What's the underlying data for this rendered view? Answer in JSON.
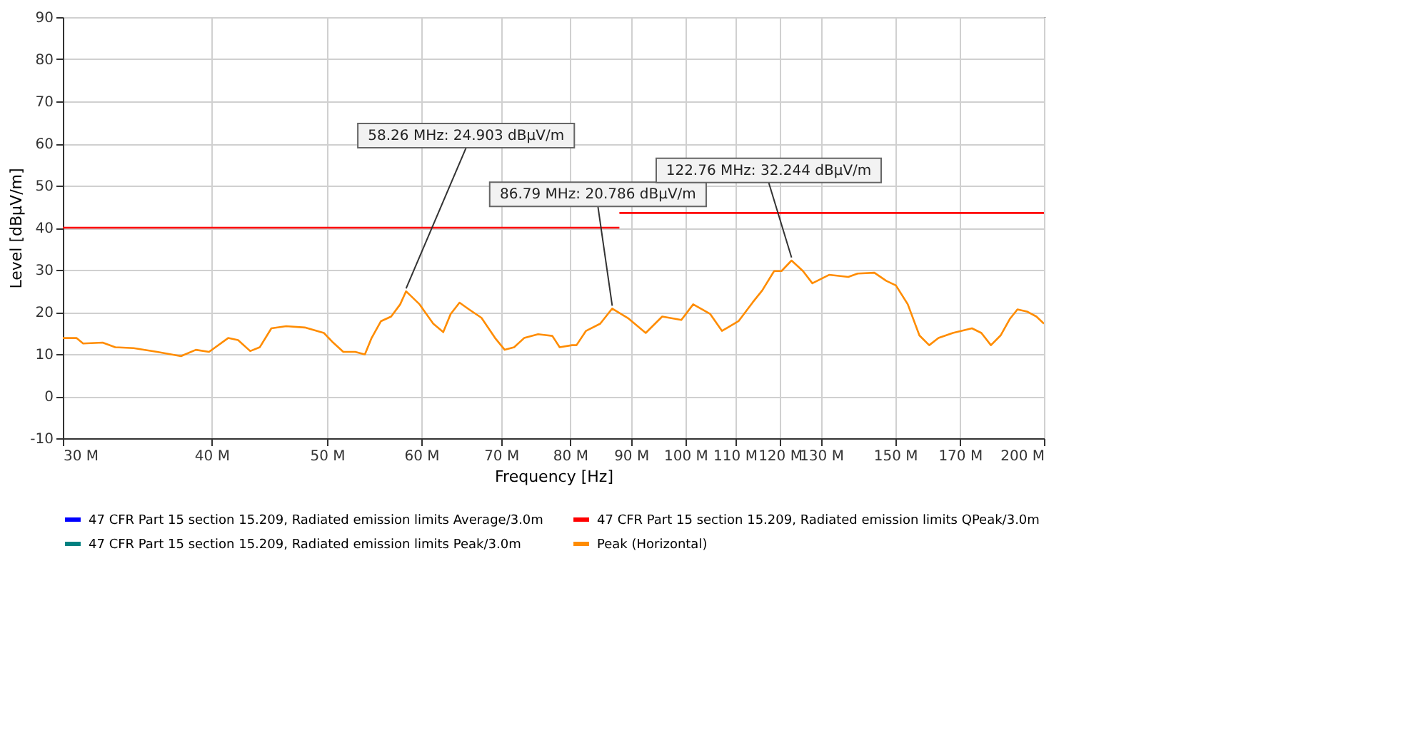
{
  "chart_data": {
    "type": "line",
    "xlabel": "Frequency [Hz]",
    "ylabel": "Level [dBµV/m]",
    "log": "x",
    "grid": true,
    "legend": "bottom",
    "line_style": "solid",
    "marker": "none",
    "xlim": [
      30000000,
      200000000
    ],
    "xticks": [
      {
        "value": 30000000,
        "label": "30 M"
      },
      {
        "value": 40000000,
        "label": "40 M"
      },
      {
        "value": 50000000,
        "label": "50 M"
      },
      {
        "value": 60000000,
        "label": "60 M"
      },
      {
        "value": 70000000,
        "label": "70 M"
      },
      {
        "value": 80000000,
        "label": "80 M"
      },
      {
        "value": 90000000,
        "label": "90 M"
      },
      {
        "value": 100000000,
        "label": "100 M"
      },
      {
        "value": 110000000,
        "label": "110 M"
      },
      {
        "value": 120000000,
        "label": "120 M"
      },
      {
        "value": 130000000,
        "label": "130 M"
      },
      {
        "value": 150000000,
        "label": "150 M"
      },
      {
        "value": 170000000,
        "label": "170 M"
      },
      {
        "value": 200000000,
        "label": "200 M"
      }
    ],
    "ylim": [
      -10,
      90
    ],
    "yticks": [
      -10,
      0,
      10,
      20,
      30,
      40,
      50,
      60,
      70,
      80,
      90
    ],
    "series": [
      {
        "name": "47 CFR Part 15 section 15.209, Radiated emission limits Average/3.0m",
        "color": "#0000ff"
      },
      {
        "name": "47 CFR Part 15 section 15.209, Radiated emission limits QPeak/3.0m",
        "color": "#ff0000",
        "x": [
          30000000,
          88000000,
          null,
          88000000,
          200000000
        ],
        "values": [
          40,
          40,
          null,
          43.5,
          43.5
        ]
      },
      {
        "name": "47 CFR Part 15 section 15.209, Radiated emission limits Peak/3.0m",
        "color": "#008080"
      },
      {
        "name": "Peak (Horizontal)",
        "color": "#ff8c00",
        "x": [
          30000000,
          30800000,
          31200000,
          32400000,
          33200000,
          34400000,
          36000000,
          37700000,
          38800000,
          39800000,
          41300000,
          42100000,
          43100000,
          43900000,
          44900000,
          46200000,
          47900000,
          49700000,
          50600000,
          51600000,
          52800000,
          53800000,
          54500000,
          55500000,
          56600000,
          57600000,
          58260000,
          59800000,
          61400000,
          62600000,
          63500000,
          64600000,
          65800000,
          67400000,
          69200000,
          70500000,
          71800000,
          73200000,
          75200000,
          77300000,
          78400000,
          80300000,
          81000000,
          82500000,
          84800000,
          86790000,
          89600000,
          92600000,
          95600000,
          99200000,
          101500000,
          104900000,
          107300000,
          110800000,
          113900000,
          116000000,
          118700000,
          120400000,
          122760000,
          125500000,
          127800000,
          132000000,
          137000000,
          139500000,
          144100000,
          147400000,
          150200000,
          153700000,
          157200000,
          160200000,
          163100000,
          167700000,
          174000000,
          177200000,
          180500000,
          183900000,
          187300000,
          190000000,
          193500000,
          197100000,
          200000000
        ],
        "values": [
          13.8,
          13.8,
          12.5,
          12.7,
          11.6,
          11.4,
          10.5,
          9.5,
          11.0,
          10.5,
          13.8,
          13.3,
          10.7,
          11.6,
          16.1,
          16.6,
          16.3,
          15.0,
          12.7,
          10.5,
          10.5,
          9.9,
          13.8,
          17.8,
          18.9,
          21.8,
          24.9,
          21.8,
          17.2,
          15.2,
          19.5,
          22.2,
          20.6,
          18.6,
          13.8,
          11.0,
          11.6,
          13.8,
          14.7,
          14.3,
          11.6,
          12.1,
          12.1,
          15.5,
          17.2,
          20.8,
          18.4,
          15.0,
          18.9,
          18.1,
          21.8,
          19.5,
          15.5,
          17.8,
          22.3,
          25.1,
          29.7,
          29.7,
          32.2,
          29.7,
          26.8,
          28.8,
          28.3,
          29.1,
          29.3,
          27.4,
          26.3,
          21.8,
          14.4,
          12.1,
          13.8,
          15.0,
          16.1,
          15.0,
          12.1,
          14.4,
          18.4,
          20.6,
          20.1,
          18.9,
          17.2
        ]
      }
    ],
    "annotations": [
      {
        "text": "58.26 MHz: 24.903 dBµV/m",
        "x": 58260000,
        "y": 24.903
      },
      {
        "text": "86.79 MHz: 20.786 dBµV/m",
        "x": 86790000,
        "y": 20.786
      },
      {
        "text": "122.76 MHz: 32.244 dBµV/m",
        "x": 122760000,
        "y": 32.244
      }
    ]
  }
}
